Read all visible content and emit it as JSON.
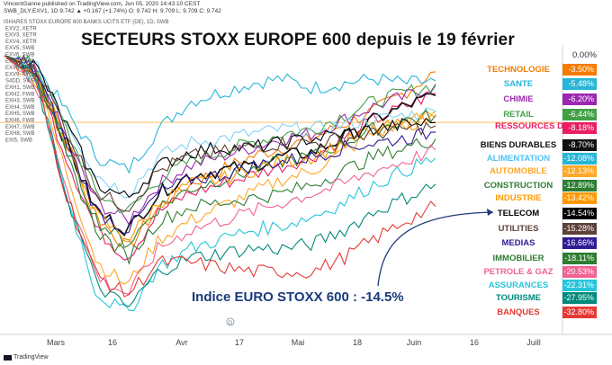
{
  "header": {
    "author_line": "VincentGanne published on TradingView.com, Jun 05, 2020 14:43:10 CEST",
    "symbol_line": "SWB_DLY:EXV1, 1D 9.742 ▲ +0.167 (+1.74%) O: 9.742 H: 9.709 L: 9.709 C: 9.742"
  },
  "chart_title": "SECTEURS STOXX EUROPE 600 depuis le 19 février",
  "index_note": "Indice EURO STOXX 600 : -14.5%",
  "zero_label": "0.00%",
  "footer_logo": "TradingView",
  "symbols": [
    "ISHARES STOXX EUROPE 600 BANKS UCITS ETF (DE), 1D, SWB",
    "EXV2, XETR",
    "EXV3, XETR",
    "EXV4, XETR",
    "EXV5, SWB",
    "EXV6, SWB",
    "EXV7, SWB",
    "EXV8, SWB",
    "EXV9, SWB",
    "S4DD, SWB",
    "EXH1, SWB",
    "EXH2, FWB",
    "EXH3, SWB",
    "EXH4, SWB",
    "EXH5, SWB",
    "EXH6, FWB",
    "EXH7, SWB",
    "EXH8, SWB",
    "EXI5, SWB"
  ],
  "chart_data": {
    "type": "line",
    "title": "SECTEURS STOXX EUROPE 600 depuis le 19 février",
    "x_ticks": [
      "Mars",
      "16",
      "Avr",
      "17",
      "Mai",
      "18",
      "Juin",
      "16",
      "Juill"
    ],
    "x_tick_pos": [
      0,
      0.115,
      0.245,
      0.37,
      0.5,
      0.625,
      0.755,
      0.87,
      1.0
    ],
    "x_range_days": [
      0,
      103
    ],
    "ylim": [
      -60,
      5
    ],
    "reference_line": -14.5,
    "series": [
      {
        "name": "TECHNOLOGIE",
        "final": "-3.50%",
        "color": "#f57c00",
        "values": [
          0,
          -3,
          -18,
          -35,
          -42,
          -33,
          -28,
          -25,
          -22,
          -20,
          -18,
          -15,
          -12,
          -8,
          -3.5
        ]
      },
      {
        "name": "SANTE",
        "final": "-5.48%",
        "color": "#29b6d6",
        "values": [
          0,
          -2,
          -12,
          -22,
          -25,
          -16,
          -10,
          -8,
          -6,
          -5,
          -7,
          -6,
          -5,
          -6,
          -5.48
        ]
      },
      {
        "name": "CHIMIE",
        "final": "-6.20%",
        "color": "#9c27b0",
        "values": [
          0,
          -3,
          -18,
          -32,
          -36,
          -28,
          -24,
          -22,
          -20,
          -18,
          -17,
          -14,
          -11,
          -9,
          -6.2
        ]
      },
      {
        "name": "RETAIL",
        "final": "-6.44%",
        "color": "#43a047",
        "values": [
          0,
          -2,
          -16,
          -30,
          -34,
          -27,
          -23,
          -21,
          -19,
          -17,
          -16,
          -13,
          -10,
          -8,
          -6.44
        ]
      },
      {
        "name": "RESSOURCES DE BASE",
        "final": "-8.18%",
        "color": "#e91e63",
        "values": [
          0,
          -4,
          -22,
          -38,
          -44,
          -34,
          -30,
          -28,
          -26,
          -24,
          -22,
          -18,
          -14,
          -11,
          -8.18
        ]
      },
      {
        "name": "BIENS DURABLES",
        "final": "-8.70%",
        "color": "#111111",
        "values": [
          0,
          -3,
          -19,
          -34,
          -38,
          -30,
          -26,
          -25,
          -24,
          -22,
          -21,
          -18,
          -14,
          -11,
          -8.7
        ]
      },
      {
        "name": "ALIMENTATION",
        "final": "-12.08%",
        "color": "#81d4fa",
        "values": [
          0,
          -2,
          -14,
          -26,
          -30,
          -22,
          -19,
          -18,
          -17,
          -16,
          -16,
          -15,
          -14,
          -13,
          -12.08
        ]
      },
      {
        "name": "AUTOMOBILE",
        "final": "-12.13%",
        "color": "#ffa726",
        "values": [
          0,
          -5,
          -25,
          -45,
          -50,
          -40,
          -36,
          -33,
          -30,
          -27,
          -25,
          -21,
          -17,
          -15,
          -12.13
        ]
      },
      {
        "name": "CONSTRUCTION",
        "final": "-12.89%",
        "color": "#2e7d32",
        "values": [
          0,
          -3,
          -20,
          -36,
          -41,
          -33,
          -29,
          -27,
          -25,
          -23,
          -22,
          -19,
          -16,
          -14,
          -12.89
        ]
      },
      {
        "name": "INDUSTRIE",
        "final": "-13.42%",
        "color": "#ff9800",
        "values": [
          0,
          -3,
          -20,
          -35,
          -40,
          -32,
          -28,
          -27,
          -25,
          -23,
          -22,
          -19,
          -16,
          -15,
          -13.42
        ]
      },
      {
        "name": "TELECOM",
        "final": "-14.54%",
        "color": "#000000",
        "values": [
          0,
          -2,
          -15,
          -28,
          -31,
          -24,
          -21,
          -20,
          -20,
          -19,
          -18,
          -17,
          -16,
          -15,
          -14.54
        ]
      },
      {
        "name": "UTILITIES",
        "final": "-15.28%",
        "color": "#5d4037",
        "values": [
          0,
          -2,
          -16,
          -30,
          -33,
          -25,
          -22,
          -21,
          -20,
          -19,
          -19,
          -18,
          -17,
          -16,
          -15.28
        ]
      },
      {
        "name": "MEDIAS",
        "final": "-16.66%",
        "color": "#311b92",
        "values": [
          0,
          -3,
          -19,
          -34,
          -38,
          -30,
          -27,
          -26,
          -24,
          -23,
          -22,
          -20,
          -19,
          -18,
          -16.66
        ]
      },
      {
        "name": "IMMOBILIER",
        "final": "-18.11%",
        "color": "#2e7d32",
        "values": [
          0,
          -3,
          -22,
          -38,
          -44,
          -36,
          -33,
          -32,
          -31,
          -30,
          -28,
          -25,
          -22,
          -20,
          -18.11
        ]
      },
      {
        "name": "PETROLE & GAZ",
        "final": "-20.53%",
        "color": "#f06292",
        "values": [
          0,
          -6,
          -28,
          -48,
          -52,
          -42,
          -38,
          -36,
          -34,
          -32,
          -30,
          -28,
          -25,
          -23,
          -20.53
        ]
      },
      {
        "name": "ASSURANCES",
        "final": "-22.31%",
        "color": "#26c6da",
        "values": [
          0,
          -5,
          -30,
          -52,
          -56,
          -46,
          -42,
          -40,
          -38,
          -37,
          -35,
          -32,
          -28,
          -25,
          -22.31
        ]
      },
      {
        "name": "TOURISME",
        "final": "-27.95%",
        "color": "#00897b",
        "values": [
          0,
          -5,
          -30,
          -50,
          -55,
          -47,
          -44,
          -43,
          -42,
          -42,
          -41,
          -38,
          -34,
          -31,
          -27.95
        ]
      },
      {
        "name": "BANQUES",
        "final": "-32.80%",
        "color": "#e53935",
        "values": [
          0,
          -5,
          -30,
          -48,
          -52,
          -45,
          -45,
          -46,
          -47,
          -47,
          -47,
          -44,
          -40,
          -36,
          -32.8
        ]
      }
    ]
  }
}
